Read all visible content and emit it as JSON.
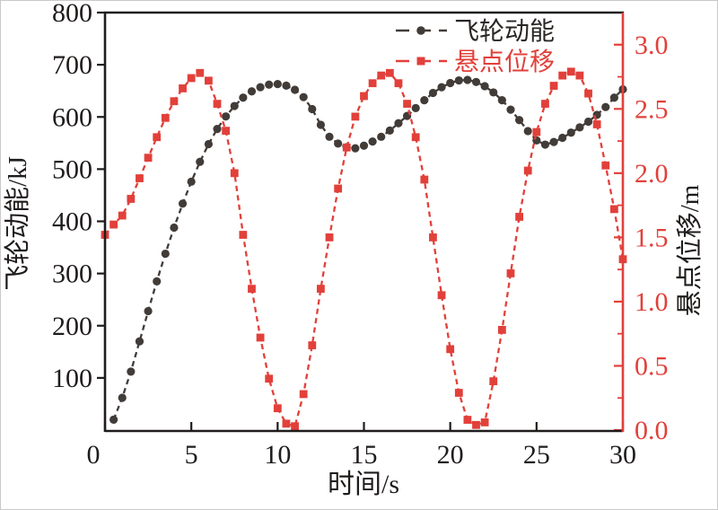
{
  "chart_data": {
    "type": "line",
    "title": "",
    "xlabel": "时间/s",
    "ylabel_left": "飞轮动能/kJ",
    "ylabel_right": "悬点位移/m",
    "x_range": [
      0,
      30
    ],
    "x_ticks": [
      0,
      5,
      10,
      15,
      20,
      25,
      30
    ],
    "y_left_range": [
      0,
      800
    ],
    "y_left_ticks": [
      100,
      200,
      300,
      400,
      500,
      600,
      700,
      800
    ],
    "y_right_range": [
      0,
      3.25
    ],
    "y_right_ticks": [
      0.0,
      0.5,
      1.0,
      1.5,
      2.0,
      2.5,
      3.0
    ],
    "y_right_minor_step": 0.25,
    "grid": false,
    "legend_position": "top-center-inside",
    "colors": {
      "axis": "#1f1c1b",
      "flywheel_series": "#423c39",
      "displacement_series": "#e2403a",
      "background": "#ffffff"
    },
    "series": [
      {
        "name": "飞轮动能",
        "axis": "left",
        "color": "#423c39",
        "marker": "circle",
        "linestyle": "dashed",
        "x": [
          0.5,
          1,
          1.5,
          2,
          2.5,
          3,
          3.5,
          4,
          4.5,
          5,
          5.5,
          6,
          6.5,
          7,
          7.5,
          8,
          8.5,
          9,
          9.5,
          10,
          10.5,
          11,
          11.5,
          12,
          12.5,
          13,
          13.5,
          14,
          14.5,
          15,
          15.5,
          16,
          16.5,
          17,
          17.5,
          18,
          18.5,
          19,
          19.5,
          20,
          20.5,
          21,
          21.5,
          22,
          22.5,
          23,
          23.5,
          24,
          24.5,
          25,
          25.5,
          26,
          26.5,
          27,
          27.5,
          28,
          28.5,
          29,
          29.5,
          30
        ],
        "y": [
          20,
          62,
          112,
          170,
          228,
          285,
          338,
          388,
          434,
          476,
          514,
          548,
          577,
          601,
          621,
          637,
          649,
          657,
          662,
          663,
          660,
          652,
          638,
          615,
          585,
          562,
          549,
          542,
          540,
          545,
          553,
          562,
          574,
          588,
          602,
          617,
          632,
          646,
          657,
          665,
          670,
          671,
          667,
          659,
          647,
          632,
          614,
          594,
          573,
          555,
          547,
          552,
          560,
          570,
          580,
          591,
          604,
          619,
          637,
          653
        ]
      },
      {
        "name": "悬点位移",
        "axis": "right",
        "color": "#e2403a",
        "marker": "square",
        "linestyle": "dashed",
        "x": [
          0,
          0.5,
          1,
          1.5,
          2,
          2.5,
          3,
          3.5,
          4,
          4.5,
          5,
          5.5,
          6,
          6.5,
          7,
          7.5,
          8,
          8.5,
          9,
          9.5,
          10,
          10.5,
          11,
          11.5,
          12,
          12.5,
          13,
          13.5,
          14,
          14.5,
          15,
          15.5,
          16,
          16.5,
          17,
          17.5,
          18,
          18.5,
          19,
          19.5,
          20,
          20.5,
          21,
          21.5,
          22,
          22.5,
          23,
          23.5,
          24,
          24.5,
          25,
          25.5,
          26,
          26.5,
          27,
          27.5,
          28,
          28.5,
          29,
          29.5,
          30
        ],
        "y": [
          1.52,
          1.6,
          1.67,
          1.8,
          1.96,
          2.12,
          2.28,
          2.43,
          2.56,
          2.66,
          2.74,
          2.78,
          2.72,
          2.54,
          2.33,
          2.0,
          1.52,
          1.1,
          0.72,
          0.4,
          0.17,
          0.05,
          0.03,
          0.28,
          0.66,
          1.1,
          1.5,
          1.88,
          2.2,
          2.44,
          2.6,
          2.7,
          2.76,
          2.78,
          2.7,
          2.54,
          2.28,
          1.95,
          1.5,
          1.05,
          0.63,
          0.29,
          0.08,
          0.04,
          0.06,
          0.38,
          0.78,
          1.22,
          1.66,
          2.02,
          2.32,
          2.54,
          2.68,
          2.76,
          2.79,
          2.76,
          2.62,
          2.38,
          2.06,
          1.72,
          1.33
        ]
      }
    ]
  }
}
